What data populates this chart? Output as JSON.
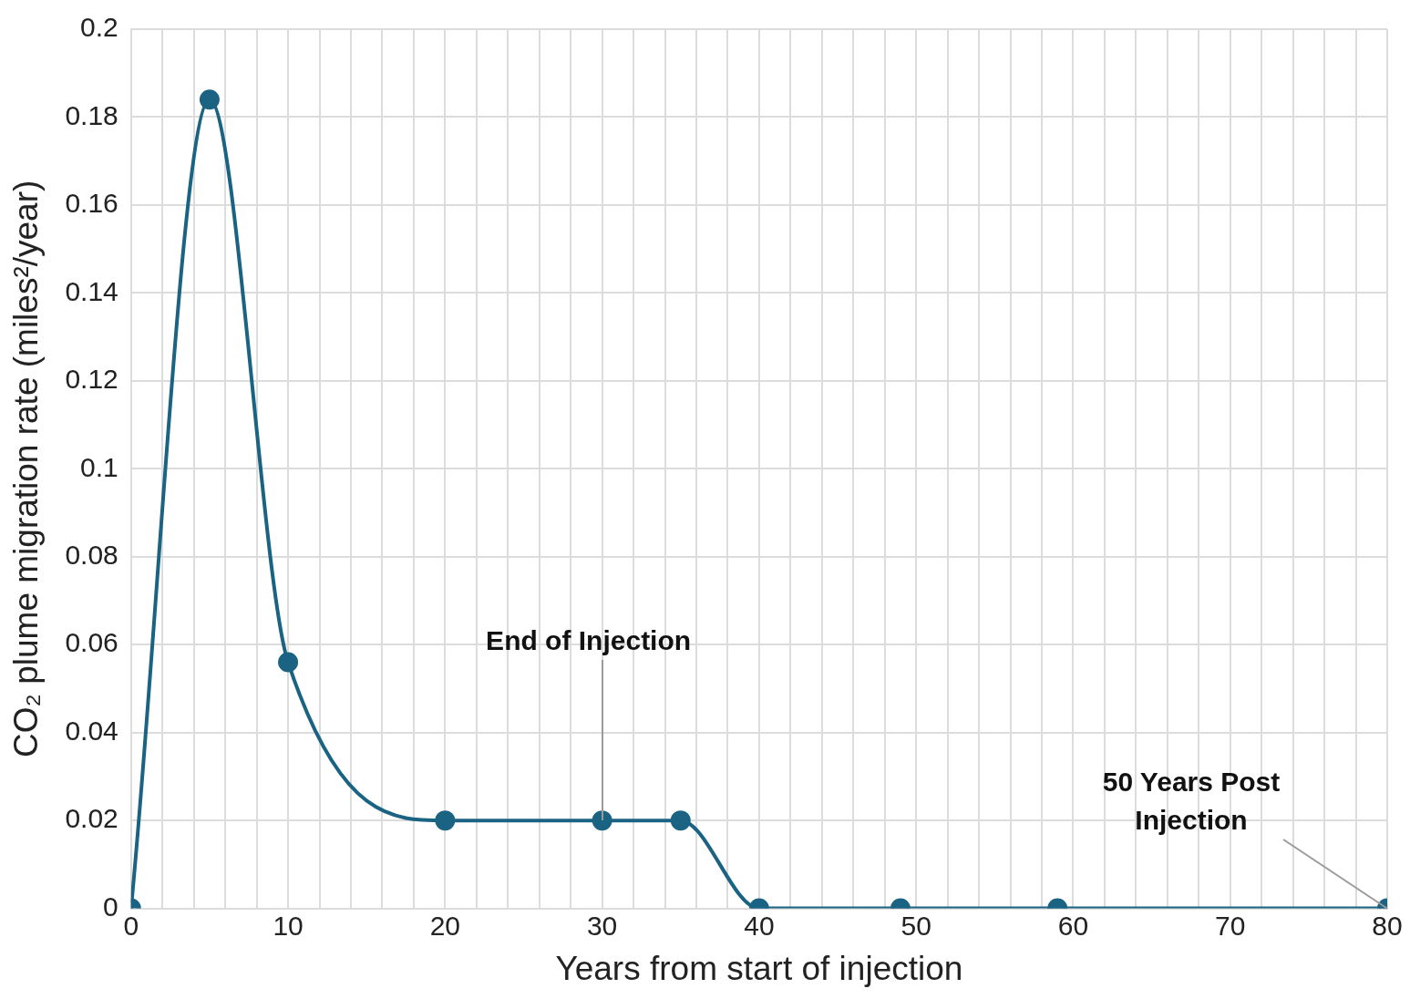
{
  "chart_data": {
    "type": "line",
    "xlabel": "Years from start of injection",
    "ylabel": "CO₂ plume migration rate (miles²/year)",
    "x": [
      0,
      5,
      10,
      20,
      30,
      35,
      40,
      49,
      59,
      80
    ],
    "series": [
      {
        "color": "#1b6383",
        "values": [
          0,
          0.184,
          0.056,
          0.02,
          0.02,
          0.02,
          0,
          0,
          0,
          0
        ]
      }
    ],
    "xlim": [
      0,
      80
    ],
    "xticks": [
      0,
      {
        "value": 2,
        "label": null
      },
      {
        "value": 4,
        "label": null
      },
      {
        "value": 6,
        "label": null
      },
      {
        "value": 8,
        "label": null
      },
      10,
      {
        "value": 12,
        "label": null
      },
      {
        "value": 14,
        "label": null
      },
      {
        "value": 16,
        "label": null
      },
      {
        "value": 18,
        "label": null
      },
      20,
      {
        "value": 22,
        "label": null
      },
      {
        "value": 24,
        "label": null
      },
      {
        "value": 26,
        "label": null
      },
      {
        "value": 28,
        "label": null
      },
      30,
      {
        "value": 32,
        "label": null
      },
      {
        "value": 34,
        "label": null
      },
      {
        "value": 36,
        "label": null
      },
      {
        "value": 38,
        "label": null
      },
      40,
      {
        "value": 42,
        "label": null
      },
      {
        "value": 44,
        "label": null
      },
      {
        "value": 46,
        "label": null
      },
      {
        "value": 48,
        "label": null
      },
      50,
      {
        "value": 52,
        "label": null
      },
      {
        "value": 54,
        "label": null
      },
      {
        "value": 56,
        "label": null
      },
      {
        "value": 58,
        "label": null
      },
      60,
      {
        "value": 62,
        "label": null
      },
      {
        "value": 64,
        "label": null
      },
      {
        "value": 66,
        "label": null
      },
      {
        "value": 68,
        "label": null
      },
      70,
      {
        "value": 72,
        "label": null
      },
      {
        "value": 74,
        "label": null
      },
      {
        "value": 76,
        "label": null
      },
      {
        "value": 78,
        "label": null
      },
      80
    ],
    "ylim": [
      0,
      0.2
    ],
    "yticks": [
      0,
      0.02,
      0.04,
      0.06,
      0.08,
      0.1,
      0.12,
      0.14,
      0.16,
      0.18,
      0.2
    ],
    "grid": true,
    "marker": "circle",
    "line_style": "solid",
    "legend": false,
    "annotations": [
      {
        "text": "End of Injection",
        "x": 30,
        "y": 0.02
      },
      {
        "text": "50 Years Post Injection",
        "x": 80,
        "y": 0
      }
    ]
  }
}
